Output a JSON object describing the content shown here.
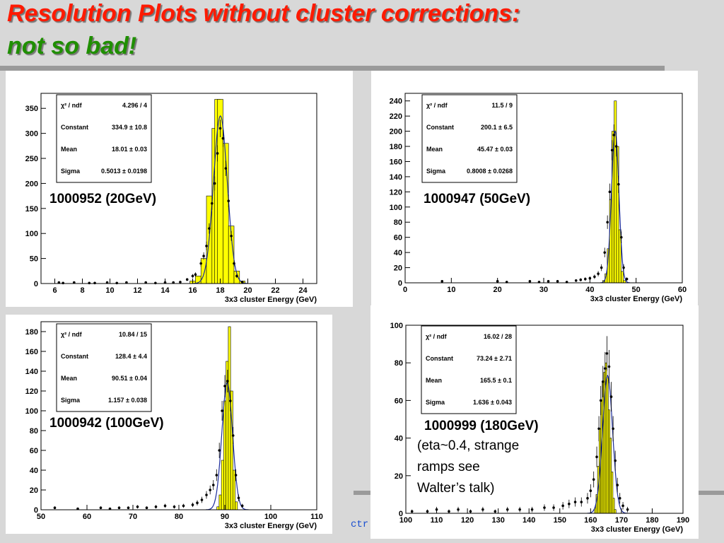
{
  "slide": {
    "title_line1": "Resolution Plots without cluster corrections:",
    "title_line2": "not so bad!",
    "footer_fragment": "ctr",
    "note": "(eta~0.4, strange ramps see Walter’s talk)",
    "colors": {
      "title_red": "#ff1a00",
      "title_green": "#1f8f00",
      "hist_fill": "#ffff00",
      "fit_line": "#1a2a9a"
    }
  },
  "chart_data": [
    {
      "type": "histogram",
      "label": "1000952 (20GeV)",
      "xlabel": "3x3 cluster Energy (GeV)",
      "xlim": [
        5.0,
        25.0
      ],
      "ylim": [
        0,
        380
      ],
      "xticks": [
        6,
        8,
        10,
        12,
        14,
        16,
        18,
        20,
        22,
        24
      ],
      "yticks": [
        0,
        50,
        100,
        150,
        200,
        250,
        300,
        350
      ],
      "stats": [
        [
          "χ² / ndf",
          "4.296 / 4"
        ],
        [
          "Constant",
          "334.9 ± 10.8"
        ],
        [
          "Mean",
          "18.01 ± 0.03"
        ],
        [
          "Sigma",
          "0.5013 ± 0.0198"
        ]
      ],
      "bins": [
        [
          16.0,
          5
        ],
        [
          16.4,
          15
        ],
        [
          16.8,
          50
        ],
        [
          17.2,
          175
        ],
        [
          17.6,
          310
        ],
        [
          17.8,
          368
        ],
        [
          18.0,
          368
        ],
        [
          18.4,
          280
        ],
        [
          18.8,
          115
        ],
        [
          19.2,
          25
        ],
        [
          19.6,
          5
        ]
      ],
      "points": [
        [
          6.3,
          2
        ],
        [
          6.6,
          1
        ],
        [
          7.4,
          2
        ],
        [
          8.5,
          1
        ],
        [
          8.9,
          1
        ],
        [
          9.8,
          2
        ],
        [
          10.5,
          1
        ],
        [
          11.2,
          2
        ],
        [
          12.6,
          2
        ],
        [
          13.3,
          1
        ],
        [
          14.0,
          2
        ],
        [
          14.6,
          2
        ],
        [
          15.1,
          3
        ],
        [
          15.6,
          8
        ],
        [
          16.0,
          15
        ],
        [
          16.2,
          18
        ],
        [
          16.6,
          40
        ],
        [
          16.8,
          55
        ],
        [
          17.0,
          75
        ],
        [
          17.2,
          110
        ],
        [
          17.4,
          160
        ],
        [
          17.6,
          200
        ],
        [
          17.8,
          260
        ],
        [
          18.0,
          310
        ],
        [
          18.2,
          290
        ],
        [
          18.4,
          230
        ],
        [
          18.6,
          165
        ],
        [
          18.8,
          95
        ],
        [
          19.0,
          40
        ],
        [
          19.2,
          15
        ],
        [
          19.6,
          3
        ]
      ],
      "fit": {
        "const": 334.9,
        "mean": 18.01,
        "sigma": 0.5013
      }
    },
    {
      "type": "histogram",
      "label": "1000947 (50GeV)",
      "xlabel": "3x3 cluster Energy (GeV)",
      "xlim": [
        0,
        60
      ],
      "ylim": [
        0,
        250
      ],
      "xticks": [
        0,
        10,
        20,
        30,
        40,
        50,
        60
      ],
      "yticks": [
        0,
        20,
        40,
        60,
        80,
        100,
        120,
        140,
        160,
        180,
        200,
        220,
        240
      ],
      "stats": [
        [
          "χ² / ndf",
          "11.5 / 9"
        ],
        [
          "Constant",
          "200.1 ± 6.5"
        ],
        [
          "Mean",
          "45.47 ± 0.03"
        ],
        [
          "Sigma",
          "0.8008 ± 0.0268"
        ]
      ],
      "bins": [
        [
          43.0,
          3
        ],
        [
          43.5,
          12
        ],
        [
          44.0,
          45
        ],
        [
          44.5,
          110
        ],
        [
          45.0,
          200
        ],
        [
          45.5,
          240
        ],
        [
          46.0,
          180
        ],
        [
          46.5,
          70
        ],
        [
          47.0,
          15
        ],
        [
          47.5,
          3
        ]
      ],
      "points": [
        [
          8,
          2
        ],
        [
          20,
          2
        ],
        [
          22,
          1
        ],
        [
          27,
          2
        ],
        [
          29,
          1
        ],
        [
          31,
          2
        ],
        [
          33,
          2
        ],
        [
          35,
          1
        ],
        [
          37,
          3
        ],
        [
          38,
          4
        ],
        [
          39,
          5
        ],
        [
          40,
          6
        ],
        [
          41,
          8
        ],
        [
          41.8,
          12
        ],
        [
          42.5,
          20
        ],
        [
          43.2,
          40
        ],
        [
          43.8,
          80
        ],
        [
          44.3,
          120
        ],
        [
          44.8,
          175
        ],
        [
          45.2,
          195
        ],
        [
          45.7,
          180
        ],
        [
          46.2,
          130
        ],
        [
          46.8,
          60
        ],
        [
          47.3,
          20
        ],
        [
          48,
          5
        ]
      ],
      "fit": {
        "const": 200.1,
        "mean": 45.47,
        "sigma": 0.8008
      }
    },
    {
      "type": "histogram",
      "label": "1000942 (100GeV)",
      "xlabel": "3x3 cluster Energy (GeV)",
      "xlim": [
        50,
        110
      ],
      "ylim": [
        0,
        190
      ],
      "xticks": [
        50,
        60,
        70,
        80,
        90,
        100,
        110
      ],
      "yticks": [
        0,
        20,
        40,
        60,
        80,
        100,
        120,
        140,
        160,
        180
      ],
      "stats": [
        [
          "χ² / ndf",
          "10.84 / 15"
        ],
        [
          "Constant",
          "128.4 ± 4.4"
        ],
        [
          "Mean",
          "90.51 ± 0.04"
        ],
        [
          "Sigma",
          "1.157 ± 0.038"
        ]
      ],
      "bins": [
        [
          88.5,
          3
        ],
        [
          89.0,
          15
        ],
        [
          89.5,
          50
        ],
        [
          90.0,
          110
        ],
        [
          90.5,
          150
        ],
        [
          91.0,
          185
        ],
        [
          91.5,
          120
        ],
        [
          92.0,
          40
        ],
        [
          92.5,
          8
        ]
      ],
      "points": [
        [
          53,
          2
        ],
        [
          58,
          1
        ],
        [
          63,
          2
        ],
        [
          65,
          1
        ],
        [
          67,
          2
        ],
        [
          69,
          2
        ],
        [
          71,
          3
        ],
        [
          73,
          2
        ],
        [
          75,
          3
        ],
        [
          77,
          4
        ],
        [
          79,
          3
        ],
        [
          81,
          4
        ],
        [
          83,
          5
        ],
        [
          84,
          7
        ],
        [
          85,
          10
        ],
        [
          86,
          15
        ],
        [
          86.8,
          20
        ],
        [
          87.5,
          25
        ],
        [
          88.2,
          35
        ],
        [
          88.8,
          60
        ],
        [
          89.4,
          100
        ],
        [
          90.0,
          125
        ],
        [
          90.6,
          130
        ],
        [
          91.2,
          110
        ],
        [
          91.8,
          75
        ],
        [
          92.4,
          35
        ],
        [
          93.0,
          12
        ],
        [
          93.8,
          4
        ]
      ],
      "fit": {
        "const": 128.4,
        "mean": 90.51,
        "sigma": 1.157
      }
    },
    {
      "type": "histogram",
      "label": "1000999 (180GeV)",
      "xlabel": "3x3 cluster Energy (GeV)",
      "xlim": [
        100,
        190
      ],
      "ylim": [
        0,
        100
      ],
      "xticks": [
        100,
        110,
        120,
        130,
        140,
        150,
        160,
        170,
        180,
        190
      ],
      "yticks": [
        0,
        20,
        40,
        60,
        80,
        100
      ],
      "stats": [
        [
          "χ² / ndf",
          "16.02 / 28"
        ],
        [
          "Constant",
          "73.24 ± 2.71"
        ],
        [
          "Mean",
          "165.5 ± 0.1"
        ],
        [
          "Sigma",
          "1.636 ± 0.043"
        ]
      ],
      "bins": [
        [
          161.5,
          3
        ],
        [
          162.0,
          10
        ],
        [
          162.5,
          25
        ],
        [
          163.0,
          45
        ],
        [
          163.5,
          60
        ],
        [
          164.0,
          70
        ],
        [
          164.5,
          75
        ],
        [
          165.0,
          80
        ],
        [
          165.5,
          72
        ],
        [
          166.0,
          55
        ],
        [
          166.5,
          40
        ],
        [
          167.0,
          22
        ],
        [
          167.5,
          8
        ],
        [
          168.0,
          2
        ]
      ],
      "points": [
        [
          102,
          1
        ],
        [
          107,
          1
        ],
        [
          110,
          2
        ],
        [
          114,
          1
        ],
        [
          117,
          2
        ],
        [
          121,
          1
        ],
        [
          125,
          2
        ],
        [
          129,
          1
        ],
        [
          133,
          2
        ],
        [
          137,
          2
        ],
        [
          141,
          2
        ],
        [
          145,
          3
        ],
        [
          148,
          3
        ],
        [
          151,
          4
        ],
        [
          153,
          5
        ],
        [
          155,
          6
        ],
        [
          157,
          6
        ],
        [
          159,
          8
        ],
        [
          160,
          12
        ],
        [
          161,
          18
        ],
        [
          162,
          30
        ],
        [
          162.7,
          45
        ],
        [
          163.3,
          60
        ],
        [
          164,
          70
        ],
        [
          164.7,
          77
        ],
        [
          165.3,
          85
        ],
        [
          166,
          78
        ],
        [
          166.7,
          62
        ],
        [
          167.3,
          45
        ],
        [
          168,
          28
        ],
        [
          168.7,
          15
        ],
        [
          169.5,
          8
        ],
        [
          170.5,
          4
        ],
        [
          172,
          2
        ]
      ],
      "fit": {
        "const": 73.24,
        "mean": 165.5,
        "sigma": 1.636
      }
    }
  ]
}
